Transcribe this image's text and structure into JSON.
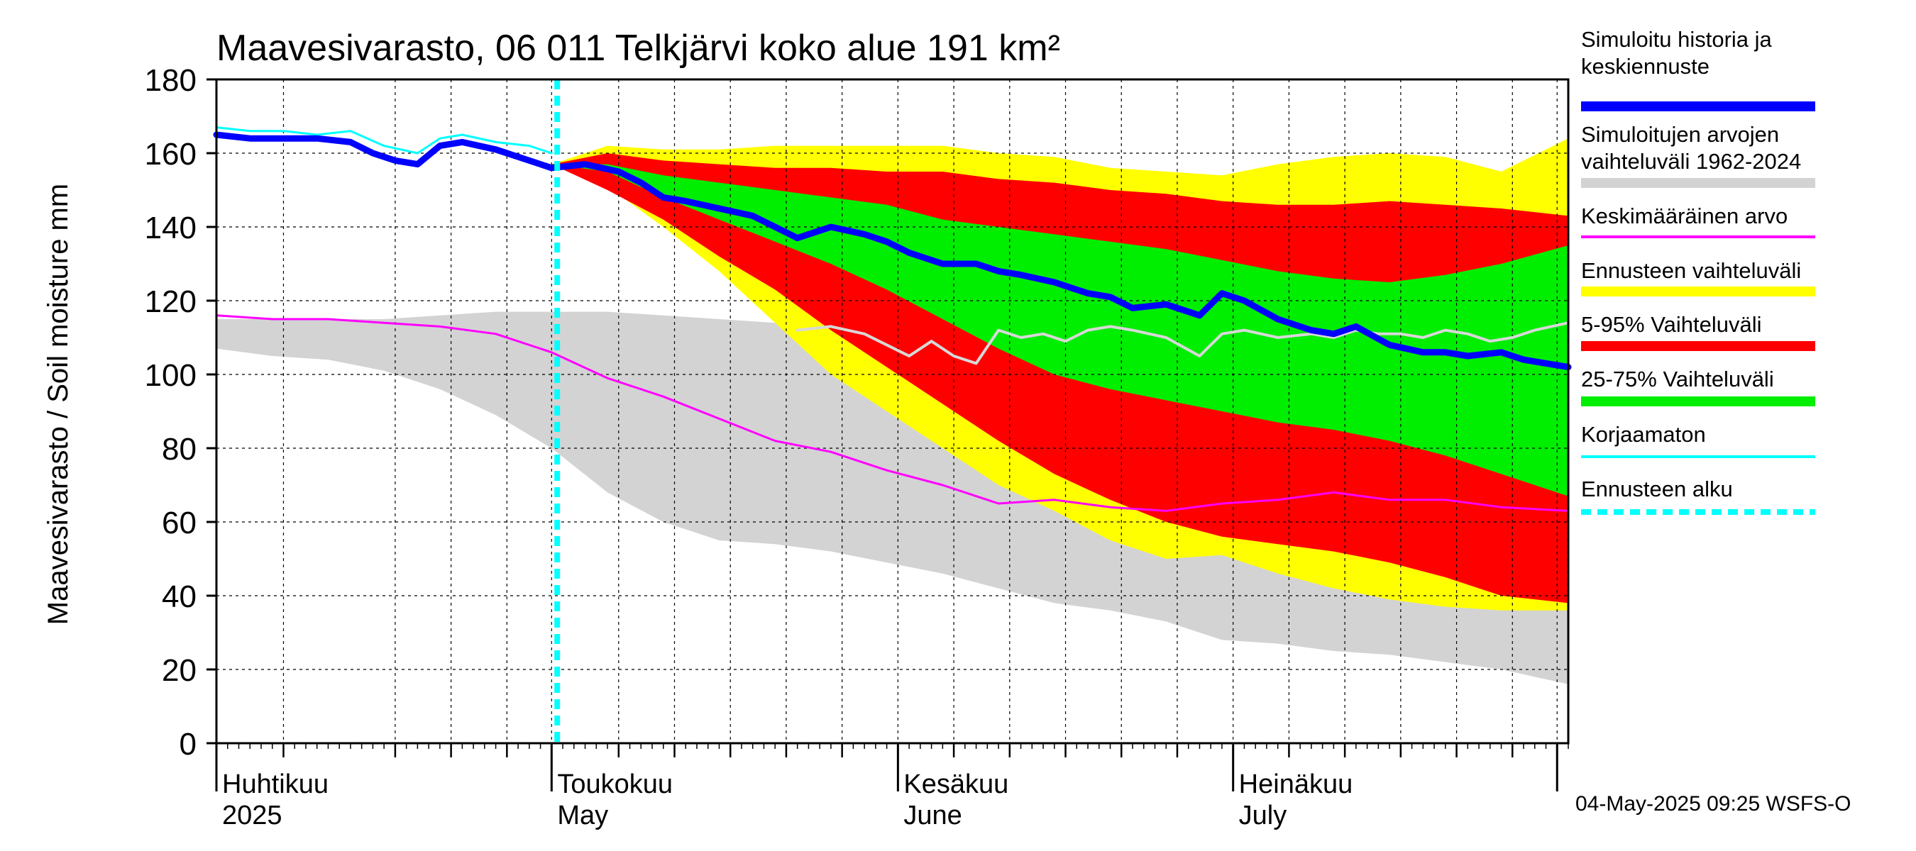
{
  "chart_data": {
    "type": "area",
    "title": "Maavesivarasto, 06 011 Telkjärvi koko alue 191 km²",
    "ylabel": "Maavesivarasto / Soil moisture   mm",
    "xlabel": "",
    "ylim": [
      0,
      180
    ],
    "yticks": [
      0,
      20,
      40,
      60,
      80,
      100,
      120,
      140,
      160,
      180
    ],
    "x_range_days": [
      0,
      121
    ],
    "x_start_date": "2025-04-01",
    "forecast_start_day": 30,
    "month_labels": [
      {
        "fi": "Huhtikuu",
        "en": "2025",
        "day": 0
      },
      {
        "fi": "Toukokuu",
        "en": "May",
        "day": 30
      },
      {
        "fi": "Kesäkuu",
        "en": "June",
        "day": 61
      },
      {
        "fi": "Heinäkuu",
        "en": "July",
        "day": 91
      }
    ],
    "month_ticks": [
      0,
      30,
      61,
      91,
      120
    ],
    "week_ticks": [
      6,
      16,
      21,
      26,
      36,
      41,
      46,
      51,
      56,
      66,
      71,
      76,
      81,
      86,
      96,
      101,
      106,
      111,
      116
    ],
    "series": [
      {
        "name": "Simuloitujen arvojen vaihteluväli 1962-2024",
        "kind": "band",
        "color": "#d3d3d3",
        "x": [
          0,
          5,
          10,
          15,
          20,
          25,
          30,
          35,
          40,
          45,
          50,
          55,
          60,
          65,
          70,
          75,
          80,
          85,
          90,
          95,
          100,
          105,
          110,
          115,
          121
        ],
        "lower": [
          107,
          105,
          104,
          101,
          96,
          89,
          80,
          68,
          60,
          55,
          54,
          52,
          49,
          46,
          42,
          38,
          36,
          33,
          28,
          27,
          25,
          24,
          22,
          20,
          16
        ],
        "upper": [
          115,
          115,
          115,
          115,
          116,
          117,
          117,
          117,
          116,
          115,
          114,
          113,
          113,
          112,
          112,
          112,
          112,
          112,
          112,
          111,
          111,
          111,
          111,
          112,
          113
        ]
      },
      {
        "name": "Ennusteen vaihteluväli",
        "kind": "band",
        "color": "#ffff00",
        "x": [
          30,
          35,
          40,
          45,
          50,
          55,
          60,
          65,
          70,
          75,
          80,
          85,
          90,
          95,
          100,
          105,
          110,
          115,
          121
        ],
        "lower": [
          157,
          151,
          140,
          128,
          114,
          100,
          90,
          80,
          70,
          63,
          55,
          50,
          51,
          46,
          42,
          39,
          37,
          36,
          36
        ],
        "upper": [
          157,
          162,
          161,
          161,
          162,
          162,
          162,
          162,
          160,
          159,
          156,
          155,
          154,
          157,
          159,
          160,
          159,
          155,
          164
        ]
      },
      {
        "name": "5-95% Vaihteluväli",
        "kind": "band",
        "color": "#ff0000",
        "x": [
          30,
          35,
          40,
          45,
          50,
          55,
          60,
          65,
          70,
          75,
          80,
          85,
          90,
          95,
          100,
          105,
          110,
          115,
          121
        ],
        "lower": [
          157,
          150,
          142,
          132,
          123,
          112,
          102,
          92,
          82,
          73,
          66,
          60,
          56,
          54,
          52,
          49,
          45,
          40,
          38
        ],
        "upper": [
          157,
          160,
          158,
          157,
          156,
          156,
          155,
          155,
          153,
          152,
          150,
          149,
          147,
          146,
          146,
          147,
          146,
          145,
          143
        ]
      },
      {
        "name": "25-75% Vaihteluväli",
        "kind": "band",
        "color": "#00ee00",
        "x": [
          30,
          35,
          40,
          45,
          50,
          55,
          60,
          65,
          70,
          75,
          80,
          85,
          90,
          95,
          100,
          105,
          110,
          115,
          121
        ],
        "lower": [
          157,
          155,
          148,
          142,
          136,
          130,
          123,
          115,
          107,
          100,
          96,
          93,
          90,
          87,
          85,
          82,
          78,
          73,
          67
        ],
        "upper": [
          157,
          157,
          154,
          152,
          150,
          148,
          146,
          142,
          140,
          138,
          136,
          134,
          131,
          128,
          126,
          125,
          127,
          130,
          135
        ]
      },
      {
        "name": "Keskimääräinen arvo",
        "kind": "line",
        "color": "#ff00ff",
        "width": 3,
        "x": [
          0,
          5,
          10,
          15,
          20,
          25,
          30,
          35,
          40,
          45,
          50,
          55,
          60,
          65,
          70,
          75,
          80,
          85,
          90,
          95,
          100,
          105,
          110,
          115,
          121
        ],
        "y": [
          116,
          115,
          115,
          114,
          113,
          111,
          106,
          99,
          94,
          88,
          82,
          79,
          74,
          70,
          65,
          66,
          64,
          63,
          65,
          66,
          68,
          66,
          66,
          64,
          63
        ]
      },
      {
        "name": "Median forecast (unlabelled)",
        "kind": "line",
        "color": "#d8d8d8",
        "width": 4,
        "x": [
          52,
          55,
          58,
          60,
          62,
          64,
          66,
          68,
          70,
          72,
          74,
          76,
          78,
          80,
          82,
          85,
          88,
          90,
          92,
          95,
          98,
          100,
          102,
          104,
          106,
          108,
          110,
          112,
          114,
          116,
          118,
          121
        ],
        "y": [
          112,
          113,
          111,
          108,
          105,
          109,
          105,
          103,
          112,
          110,
          111,
          109,
          112,
          113,
          112,
          110,
          105,
          111,
          112,
          110,
          111,
          110,
          112,
          111,
          111,
          110,
          112,
          111,
          109,
          110,
          112,
          114
        ]
      },
      {
        "name": "Korjaamaton",
        "kind": "line",
        "color": "#00ffff",
        "width": 3,
        "x": [
          0,
          3,
          6,
          9,
          12,
          15,
          18,
          20,
          22,
          25,
          28,
          30
        ],
        "y": [
          167,
          166,
          166,
          165,
          166,
          162,
          160,
          164,
          165,
          163,
          162,
          160
        ]
      },
      {
        "name": "Simuloitu historia ja keskiennuste",
        "kind": "line",
        "color": "#0000ff",
        "width": 9,
        "x": [
          0,
          3,
          6,
          9,
          12,
          14,
          16,
          18,
          20,
          22,
          25,
          28,
          30,
          33,
          36,
          38,
          40,
          42,
          45,
          48,
          50,
          52,
          55,
          58,
          60,
          62,
          65,
          68,
          70,
          72,
          75,
          78,
          80,
          82,
          85,
          88,
          90,
          92,
          95,
          98,
          100,
          102,
          105,
          108,
          110,
          112,
          115,
          117,
          119,
          121
        ],
        "y": [
          165,
          164,
          164,
          164,
          163,
          160,
          158,
          157,
          162,
          163,
          161,
          158,
          156,
          157,
          155,
          152,
          148,
          147,
          145,
          143,
          140,
          137,
          140,
          138,
          136,
          133,
          130,
          130,
          128,
          127,
          125,
          122,
          121,
          118,
          119,
          116,
          122,
          120,
          115,
          112,
          111,
          113,
          108,
          106,
          106,
          105,
          106,
          104,
          103,
          102
        ]
      },
      {
        "name": "Ennusteen alku",
        "kind": "vline",
        "color": "#00ffff",
        "width": 8,
        "dashed": true,
        "x": 30.5
      }
    ],
    "legend": [
      {
        "label": "Simuloitu historia ja keskiennuste",
        "color": "#0000ff",
        "style": "thick"
      },
      {
        "label": "Simuloitujen arvojen vaihteluväli 1962-2024",
        "color": "#d3d3d3",
        "style": "band"
      },
      {
        "label": "Keskimääräinen arvo",
        "color": "#ff00ff",
        "style": "line"
      },
      {
        "label": "Ennusteen vaihteluväli",
        "color": "#ffff00",
        "style": "band"
      },
      {
        "label": "5-95% Vaihteluväli",
        "color": "#ff0000",
        "style": "band"
      },
      {
        "label": "25-75% Vaihteluväli",
        "color": "#00ee00",
        "style": "band"
      },
      {
        "label": "Korjaamaton",
        "color": "#00ffff",
        "style": "line"
      },
      {
        "label": "Ennusteen alku",
        "color": "#00ffff",
        "style": "dashed"
      }
    ],
    "legend_placement": "right",
    "footer": "04-May-2025 09:25 WSFS-O",
    "grid": true
  }
}
